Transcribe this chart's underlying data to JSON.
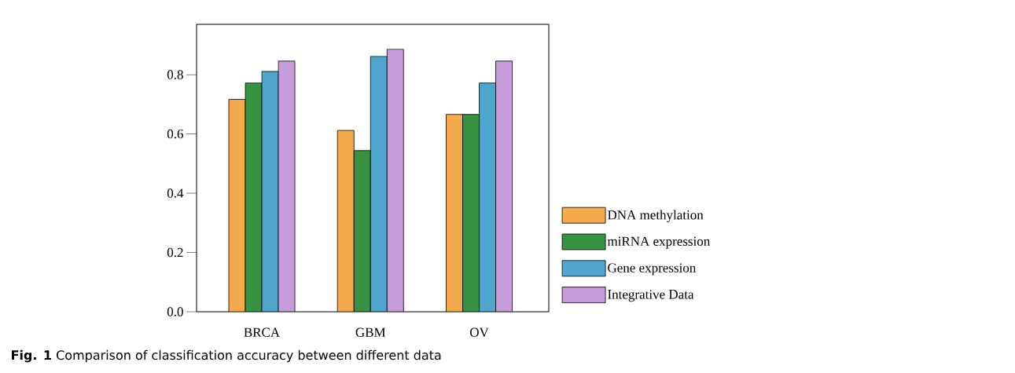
{
  "chart_data": {
    "type": "bar",
    "categories": [
      "BRCA",
      "GBM",
      "OV"
    ],
    "series": [
      {
        "name": "DNA methylation",
        "color": "#f4aa4a",
        "values": [
          0.717,
          0.612,
          0.666
        ]
      },
      {
        "name": "miRNA expression",
        "color": "#369141",
        "values": [
          0.772,
          0.544,
          0.666
        ]
      },
      {
        "name": "Gene expression",
        "color": "#50a5cd",
        "values": [
          0.811,
          0.862,
          0.772
        ]
      },
      {
        "name": "Integrative Data",
        "color": "#c59ddb",
        "values": [
          0.846,
          0.886,
          0.846
        ]
      }
    ],
    "ylim": [
      0,
      0.97
    ],
    "yticks": [
      {
        "value": 0,
        "label": "0.0"
      },
      0.2,
      0.4,
      0.6,
      0.8
    ],
    "legend": "right",
    "annotations": [
      "**Fig. 1** Comparison of classification accuracy between different data"
    ]
  }
}
